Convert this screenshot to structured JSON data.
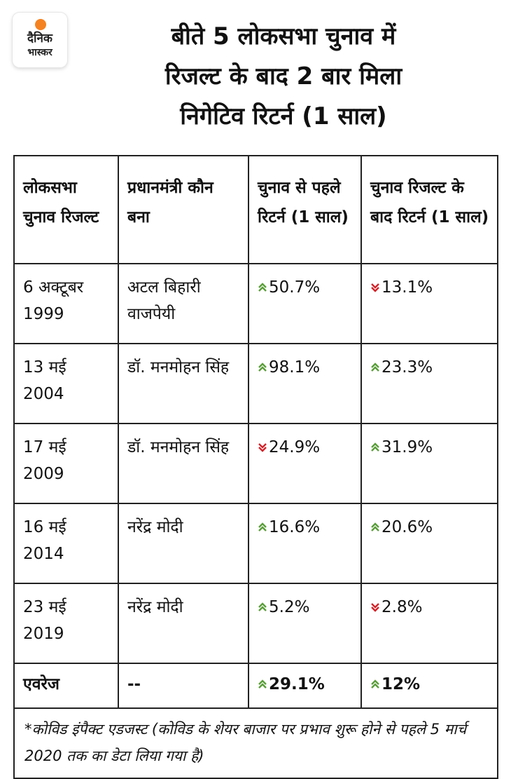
{
  "logo": {
    "line1": "दैनिक",
    "line2": "भास्कर"
  },
  "title": {
    "line1": "बीते 5 लोकसभा चुनाव में",
    "line2": "रिजल्ट के बाद 2 बार मिला",
    "line3": "निगेटिव रिटर्न (1 साल)"
  },
  "table": {
    "headers": [
      "लोकसभा चुनाव रिजल्ट",
      "प्रधानमंत्री कौन बना",
      "चुनाव से पहले रिटर्न (1 साल)",
      "चुनाव रिजल्ट के बाद रिटर्न (1 साल)"
    ],
    "rows": [
      {
        "date": "6 अक्टूबर 1999",
        "pm": "अटल बिहारी वाजपेयी",
        "before": "50.7%",
        "before_dir": "up",
        "after": "13.1%",
        "after_dir": "down"
      },
      {
        "date": "13 मई 2004",
        "pm": "डॉ. मनमोहन सिंह",
        "before": "98.1%",
        "before_dir": "up",
        "after": "23.3%",
        "after_dir": "up"
      },
      {
        "date": "17 मई 2009",
        "pm": "डॉ. मनमोहन सिंह",
        "before": "24.9%",
        "before_dir": "down",
        "after": "31.9%",
        "after_dir": "up"
      },
      {
        "date": "16 मई 2014",
        "pm": "नरेंद्र मोदी",
        "before": "16.6%",
        "before_dir": "up",
        "after": "20.6%",
        "after_dir": "up"
      },
      {
        "date": "23 मई 2019",
        "pm": "नरेंद्र मोदी",
        "before": "5.2%",
        "before_dir": "up",
        "after": "2.8%",
        "after_dir": "down"
      }
    ],
    "average": {
      "label": "एवरेज",
      "pm": "--",
      "before": "29.1%",
      "before_dir": "up",
      "after": "12%",
      "after_dir": "up"
    }
  },
  "note": "*कोविड इंपैक्ट एडजस्ट (कोविड के शेयर बाजार पर प्रभाव शुरू होने से पहले 5 मार्च 2020 तक का डेटा लिया गया है)",
  "colors": {
    "up": "#5a9e3a",
    "down": "#d2232a",
    "logo_sun": "#f58220",
    "border": "#222222"
  }
}
